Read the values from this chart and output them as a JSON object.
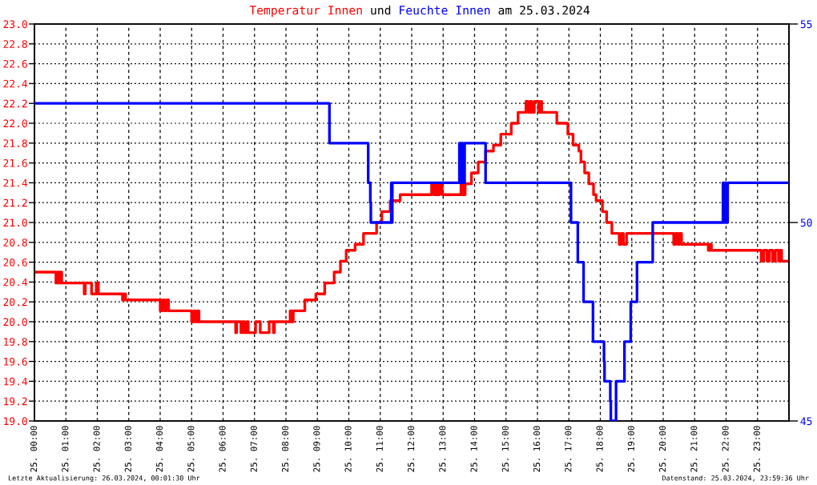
{
  "chart_data": {
    "type": "step",
    "title": "am 25.03.2024",
    "legend": "top",
    "series": [
      {
        "name": "Temperatur Innen",
        "color": "#ff0000",
        "x": [
          "2024-03-25T00:00",
          "2024-03-25T00:41",
          "2024-03-25T00:44",
          "2024-03-25T00:47",
          "2024-03-25T00:49",
          "2024-03-25T00:52",
          "2024-03-25T01:35",
          "2024-03-25T01:37",
          "2024-03-25T01:49",
          "2024-03-25T01:58",
          "2024-03-25T02:02",
          "2024-03-25T02:48",
          "2024-03-25T02:51",
          "2024-03-25T02:54",
          "2024-03-25T04:00",
          "2024-03-25T04:04",
          "2024-03-25T04:08",
          "2024-03-25T04:12",
          "2024-03-25T04:16",
          "2024-03-25T05:00",
          "2024-03-25T05:04",
          "2024-03-25T05:07",
          "2024-03-25T05:11",
          "2024-03-25T05:14",
          "2024-03-25T06:24",
          "2024-03-25T06:26",
          "2024-03-25T06:34",
          "2024-03-25T06:37",
          "2024-03-25T06:41",
          "2024-03-25T06:45",
          "2024-03-25T06:48",
          "2024-03-25T07:02",
          "2024-03-25T07:11",
          "2024-03-25T07:28",
          "2024-03-25T07:36",
          "2024-03-25T07:38",
          "2024-03-25T08:08",
          "2024-03-25T08:11",
          "2024-03-25T08:14",
          "2024-03-25T08:36",
          "2024-03-25T08:57",
          "2024-03-25T09:14",
          "2024-03-25T09:32",
          "2024-03-25T09:44",
          "2024-03-25T09:55",
          "2024-03-25T10:12",
          "2024-03-25T10:28",
          "2024-03-25T10:53",
          "2024-03-25T11:03",
          "2024-03-25T11:19",
          "2024-03-25T11:38",
          "2024-03-25T12:38",
          "2024-03-25T12:42",
          "2024-03-25T12:45",
          "2024-03-25T12:48",
          "2024-03-25T12:53",
          "2024-03-25T12:58",
          "2024-03-25T13:34",
          "2024-03-25T13:37",
          "2024-03-25T13:42",
          "2024-03-25T13:54",
          "2024-03-25T14:07",
          "2024-03-25T14:21",
          "2024-03-25T14:36",
          "2024-03-25T14:50",
          "2024-03-25T15:10",
          "2024-03-25T15:23",
          "2024-03-25T15:38",
          "2024-03-25T15:42",
          "2024-03-25T15:46",
          "2024-03-25T15:49",
          "2024-03-25T15:54",
          "2024-03-25T16:02",
          "2024-03-25T16:05",
          "2024-03-25T16:08",
          "2024-03-25T16:37",
          "2024-03-25T16:58",
          "2024-03-25T17:08",
          "2024-03-25T17:19",
          "2024-03-25T17:23",
          "2024-03-25T17:30",
          "2024-03-25T17:38",
          "2024-03-25T17:47",
          "2024-03-25T17:52",
          "2024-03-25T18:04",
          "2024-03-25T18:12",
          "2024-03-25T18:22",
          "2024-03-25T18:36",
          "2024-03-25T18:40",
          "2024-03-25T18:44",
          "2024-03-25T18:50",
          "2024-03-25T20:20",
          "2024-03-25T20:24",
          "2024-03-25T20:28",
          "2024-03-25T20:31",
          "2024-03-25T20:35",
          "2024-03-25T21:26",
          "2024-03-25T21:29",
          "2024-03-25T21:32",
          "2024-03-25T23:07",
          "2024-03-25T23:12",
          "2024-03-25T23:18",
          "2024-03-25T23:23",
          "2024-03-25T23:29",
          "2024-03-25T23:34",
          "2024-03-25T23:40",
          "2024-03-25T23:43",
          "2024-03-25T23:46",
          "2024-03-25T23:59"
        ],
        "values": [
          20.5,
          20.39,
          20.5,
          20.39,
          20.5,
          20.39,
          20.28,
          20.39,
          20.28,
          20.39,
          20.28,
          20.22,
          20.28,
          20.22,
          20.11,
          20.22,
          20.11,
          20.22,
          20.11,
          20.0,
          20.11,
          20.0,
          20.11,
          20.0,
          19.89,
          20.0,
          19.89,
          20.0,
          19.89,
          20.0,
          19.89,
          20.0,
          19.89,
          20.0,
          19.89,
          20.0,
          20.11,
          20.0,
          20.11,
          20.22,
          20.28,
          20.39,
          20.5,
          20.61,
          20.72,
          20.78,
          20.89,
          21.0,
          21.11,
          21.22,
          21.28,
          21.39,
          21.28,
          21.39,
          21.28,
          21.39,
          21.28,
          21.39,
          21.28,
          21.39,
          21.5,
          21.61,
          21.72,
          21.78,
          21.89,
          22.0,
          22.11,
          22.22,
          22.11,
          22.22,
          22.11,
          22.22,
          22.11,
          22.22,
          22.11,
          22.0,
          21.89,
          21.78,
          21.72,
          21.61,
          21.5,
          21.39,
          21.28,
          21.22,
          21.11,
          21.0,
          20.89,
          20.78,
          20.89,
          20.78,
          20.89,
          20.78,
          20.89,
          20.78,
          20.89,
          20.78,
          20.72,
          20.78,
          20.72,
          20.61,
          20.72,
          20.61,
          20.72,
          20.61,
          20.72,
          20.61,
          20.72,
          20.61,
          20.61
        ]
      },
      {
        "name": "Feuchte Innen",
        "color": "#0000ff",
        "axis": "y2",
        "x": [
          "2024-03-25T00:00",
          "2024-03-25T09:23",
          "2024-03-25T10:37",
          "2024-03-25T10:41",
          "2024-03-25T10:42",
          "2024-03-25T11:21",
          "2024-03-25T11:22",
          "2024-03-25T11:23",
          "2024-03-25T13:31",
          "2024-03-25T13:34",
          "2024-03-25T13:36",
          "2024-03-25T13:38",
          "2024-03-25T13:41",
          "2024-03-25T14:21",
          "2024-03-25T17:04",
          "2024-03-25T17:17",
          "2024-03-25T17:28",
          "2024-03-25T17:46",
          "2024-03-25T18:07",
          "2024-03-25T18:08",
          "2024-03-25T18:19",
          "2024-03-25T18:20",
          "2024-03-25T18:30",
          "2024-03-25T18:46",
          "2024-03-25T18:58",
          "2024-03-25T19:10",
          "2024-03-25T19:40",
          "2024-03-25T21:54",
          "2024-03-25T21:56",
          "2024-03-25T21:58",
          "2024-03-25T22:00",
          "2024-03-25T22:03",
          "2024-03-25T23:59"
        ],
        "values": [
          53,
          52,
          51,
          50.5,
          50,
          51,
          50,
          51,
          52,
          51,
          52,
          51,
          52,
          51,
          50,
          49,
          48,
          47,
          46.5,
          46,
          45.5,
          45,
          46,
          47,
          48,
          49,
          50,
          51,
          50,
          51,
          50,
          51,
          51
        ]
      }
    ],
    "xlim": [
      "2024-03-25T00:00",
      "2024-03-26T00:00"
    ],
    "xticks": [
      {
        "value": "2024-03-25T00:00",
        "label": "25. 00:00"
      },
      {
        "value": "2024-03-25T01:00",
        "label": "25. 01:00"
      },
      {
        "value": "2024-03-25T02:00",
        "label": "25. 02:00"
      },
      {
        "value": "2024-03-25T03:00",
        "label": "25. 03:00"
      },
      {
        "value": "2024-03-25T04:00",
        "label": "25. 04:00"
      },
      {
        "value": "2024-03-25T05:00",
        "label": "25. 05:00"
      },
      {
        "value": "2024-03-25T06:00",
        "label": "25. 06:00"
      },
      {
        "value": "2024-03-25T07:00",
        "label": "25. 07:00"
      },
      {
        "value": "2024-03-25T08:00",
        "label": "25. 08:00"
      },
      {
        "value": "2024-03-25T09:00",
        "label": "25. 09:00"
      },
      {
        "value": "2024-03-25T10:00",
        "label": "25. 10:00"
      },
      {
        "value": "2024-03-25T11:00",
        "label": "25. 11:00"
      },
      {
        "value": "2024-03-25T12:00",
        "label": "25. 12:00"
      },
      {
        "value": "2024-03-25T13:00",
        "label": "25. 13:00"
      },
      {
        "value": "2024-03-25T14:00",
        "label": "25. 14:00"
      },
      {
        "value": "2024-03-25T15:00",
        "label": "25. 15:00"
      },
      {
        "value": "2024-03-25T16:00",
        "label": "25. 16:00"
      },
      {
        "value": "2024-03-25T17:00",
        "label": "25. 17:00"
      },
      {
        "value": "2024-03-25T18:00",
        "label": "25. 18:00"
      },
      {
        "value": "2024-03-25T19:00",
        "label": "25. 19:00"
      },
      {
        "value": "2024-03-25T20:00",
        "label": "25. 20:00"
      },
      {
        "value": "2024-03-25T21:00",
        "label": "25. 21:00"
      },
      {
        "value": "2024-03-25T22:00",
        "label": "25. 22:00"
      },
      {
        "value": "2024-03-25T23:00",
        "label": "25. 23:00"
      }
    ],
    "ylim": [
      19,
      23
    ],
    "yticks": [
      {
        "value": 19,
        "label": "19.0"
      },
      19.2,
      19.4,
      19.6,
      19.8,
      {
        "value": 20,
        "label": "20.0"
      },
      20.2,
      20.4,
      20.6,
      20.8,
      {
        "value": 21,
        "label": "21.0"
      },
      21.2,
      21.4,
      21.6,
      21.8,
      {
        "value": 22,
        "label": "22.0"
      },
      22.2,
      22.4,
      22.6,
      22.8,
      {
        "value": 23,
        "label": "23.0"
      }
    ],
    "y2lim": [
      45,
      55
    ],
    "y2ticks": [
      45,
      50,
      55
    ],
    "grid": true,
    "annotations": [
      "und",
      "Letzte Aktualisierung: 26.03.2024, 00:01:30 Uhr",
      "Datenstand: 25.03.2024, 23:59:36 Uhr"
    ]
  }
}
